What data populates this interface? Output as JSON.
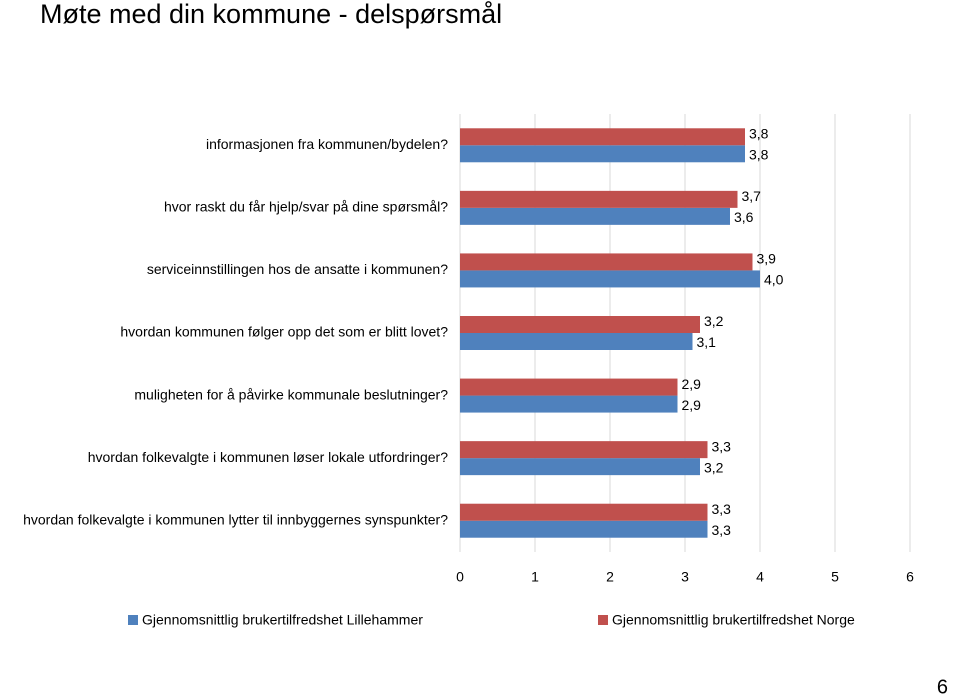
{
  "chart_data": {
    "type": "hbar",
    "title": "Møte med din kommune - delspørsmål",
    "categories": [
      "informasjonen fra kommunen/bydelen?",
      "hvor raskt du får hjelp/svar på dine spørsmål?",
      "serviceinnstillingen hos de ansatte i kommunen?",
      "hvordan kommunen følger opp det som er blitt lovet?",
      "muligheten for å påvirke kommunale beslutninger?",
      "hvordan folkevalgte i kommunen løser lokale utfordringer?",
      "hvordan folkevalgte i kommunen lytter til innbyggernes synspunkter?"
    ],
    "series": [
      {
        "name": "Gjennomsnittlig brukertilfredshet Lillehammer",
        "color": "#4f81bd",
        "values": [
          3.8,
          3.6,
          4.0,
          3.1,
          2.9,
          3.2,
          3.3
        ],
        "value_labels": [
          "3,8",
          "3,6",
          "4,0",
          "3,1",
          "2,9",
          "3,2",
          "3,3"
        ]
      },
      {
        "name": "Gjennomsnittlig brukertilfredshet Norge",
        "color": "#c0504d",
        "values": [
          3.8,
          3.7,
          3.9,
          3.2,
          2.9,
          3.3,
          3.3
        ],
        "value_labels": [
          "3,8",
          "3,7",
          "3,9",
          "3,2",
          "2,9",
          "3,3",
          "3,3"
        ]
      }
    ],
    "xlim": [
      0,
      6
    ],
    "xticks": [
      0,
      1,
      2,
      3,
      4,
      5,
      6
    ],
    "grid": true
  },
  "page_number": "6"
}
